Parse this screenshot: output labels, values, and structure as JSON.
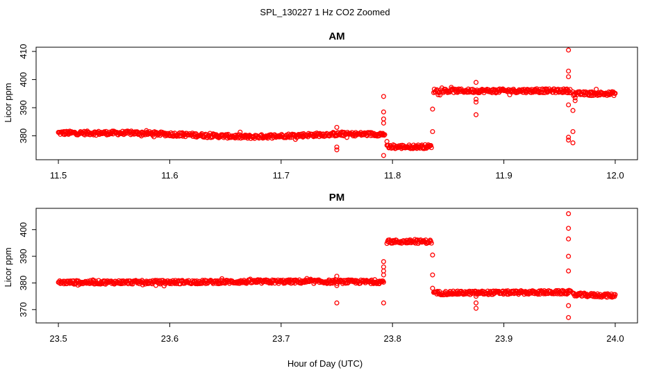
{
  "figure": {
    "title": "SPL_130227  1 Hz CO2 Zoomed",
    "xlabel": "Hour of Day (UTC)"
  },
  "chart_data": [
    {
      "type": "scatter",
      "title": "AM",
      "xlabel": "",
      "ylabel": "Licor ppm",
      "xlim": [
        11.48,
        12.02
      ],
      "ylim": [
        371.5,
        411.5
      ],
      "xticks": [
        "11.5",
        "11.6",
        "11.7",
        "11.8",
        "11.9",
        "12.0"
      ],
      "yticks": [
        "380",
        "390",
        "400",
        "410"
      ],
      "marker": "open-circle",
      "color": "#ff0000",
      "grid": false,
      "segments": [
        {
          "x0": 11.5,
          "x1": 11.57,
          "y0": 381.0,
          "y1": 381.0
        },
        {
          "x0": 11.57,
          "x1": 11.67,
          "y0": 381.0,
          "y1": 379.6
        },
        {
          "x0": 11.67,
          "x1": 11.75,
          "y0": 379.6,
          "y1": 380.6
        },
        {
          "x0": 11.75,
          "x1": 11.793,
          "y0": 380.6,
          "y1": 380.6
        },
        {
          "x0": 11.795,
          "x1": 11.835,
          "y0": 376.0,
          "y1": 376.2
        },
        {
          "x0": 11.837,
          "x1": 11.96,
          "y0": 396.0,
          "y1": 396.0
        },
        {
          "x0": 11.962,
          "x1": 12.0,
          "y0": 395.0,
          "y1": 395.0
        }
      ],
      "outliers": [
        {
          "x": 11.75,
          "y": 383.0
        },
        {
          "x": 11.75,
          "y": 376.0
        },
        {
          "x": 11.75,
          "y": 375.0
        },
        {
          "x": 11.792,
          "y": 394.0
        },
        {
          "x": 11.792,
          "y": 388.5
        },
        {
          "x": 11.792,
          "y": 386.0
        },
        {
          "x": 11.792,
          "y": 384.5
        },
        {
          "x": 11.792,
          "y": 373.0
        },
        {
          "x": 11.795,
          "y": 378.0
        },
        {
          "x": 11.836,
          "y": 389.5
        },
        {
          "x": 11.836,
          "y": 381.5
        },
        {
          "x": 11.875,
          "y": 399.0
        },
        {
          "x": 11.875,
          "y": 393.0
        },
        {
          "x": 11.875,
          "y": 392.0
        },
        {
          "x": 11.875,
          "y": 387.5
        },
        {
          "x": 11.958,
          "y": 410.5
        },
        {
          "x": 11.958,
          "y": 403.0
        },
        {
          "x": 11.958,
          "y": 401.0
        },
        {
          "x": 11.958,
          "y": 391.0
        },
        {
          "x": 11.958,
          "y": 379.5
        },
        {
          "x": 11.958,
          "y": 378.5
        },
        {
          "x": 11.962,
          "y": 389.0
        },
        {
          "x": 11.962,
          "y": 381.5
        },
        {
          "x": 11.962,
          "y": 377.5
        },
        {
          "x": 11.964,
          "y": 393.5
        },
        {
          "x": 11.964,
          "y": 392.5
        }
      ]
    },
    {
      "type": "scatter",
      "title": "PM",
      "xlabel": "",
      "ylabel": "Licor ppm",
      "xlim": [
        23.48,
        24.02
      ],
      "ylim": [
        365.0,
        408.0
      ],
      "xticks": [
        "23.5",
        "23.6",
        "23.7",
        "23.8",
        "23.9",
        "24.0"
      ],
      "yticks": [
        "370",
        "380",
        "390",
        "400"
      ],
      "marker": "open-circle",
      "color": "#ff0000",
      "grid": false,
      "segments": [
        {
          "x0": 23.5,
          "x1": 23.6,
          "y0": 380.2,
          "y1": 380.3
        },
        {
          "x0": 23.6,
          "x1": 23.7,
          "y0": 380.3,
          "y1": 380.5
        },
        {
          "x0": 23.7,
          "x1": 23.792,
          "y0": 380.5,
          "y1": 380.4
        },
        {
          "x0": 23.795,
          "x1": 23.835,
          "y0": 395.5,
          "y1": 395.5
        },
        {
          "x0": 23.837,
          "x1": 23.96,
          "y0": 376.2,
          "y1": 376.5
        },
        {
          "x0": 23.962,
          "x1": 24.0,
          "y0": 375.6,
          "y1": 375.2
        }
      ],
      "outliers": [
        {
          "x": 23.75,
          "y": 382.5
        },
        {
          "x": 23.75,
          "y": 379.0
        },
        {
          "x": 23.75,
          "y": 372.5
        },
        {
          "x": 23.792,
          "y": 383.0
        },
        {
          "x": 23.792,
          "y": 384.5
        },
        {
          "x": 23.792,
          "y": 388.0
        },
        {
          "x": 23.792,
          "y": 386.0
        },
        {
          "x": 23.792,
          "y": 372.5
        },
        {
          "x": 23.836,
          "y": 390.5
        },
        {
          "x": 23.836,
          "y": 383.0
        },
        {
          "x": 23.836,
          "y": 378.0
        },
        {
          "x": 23.875,
          "y": 375.0
        },
        {
          "x": 23.875,
          "y": 372.5
        },
        {
          "x": 23.875,
          "y": 370.5
        },
        {
          "x": 23.958,
          "y": 406.0
        },
        {
          "x": 23.958,
          "y": 400.5
        },
        {
          "x": 23.958,
          "y": 396.5
        },
        {
          "x": 23.958,
          "y": 390.0
        },
        {
          "x": 23.958,
          "y": 384.5
        },
        {
          "x": 23.958,
          "y": 371.5
        },
        {
          "x": 23.958,
          "y": 367.0
        }
      ]
    }
  ]
}
